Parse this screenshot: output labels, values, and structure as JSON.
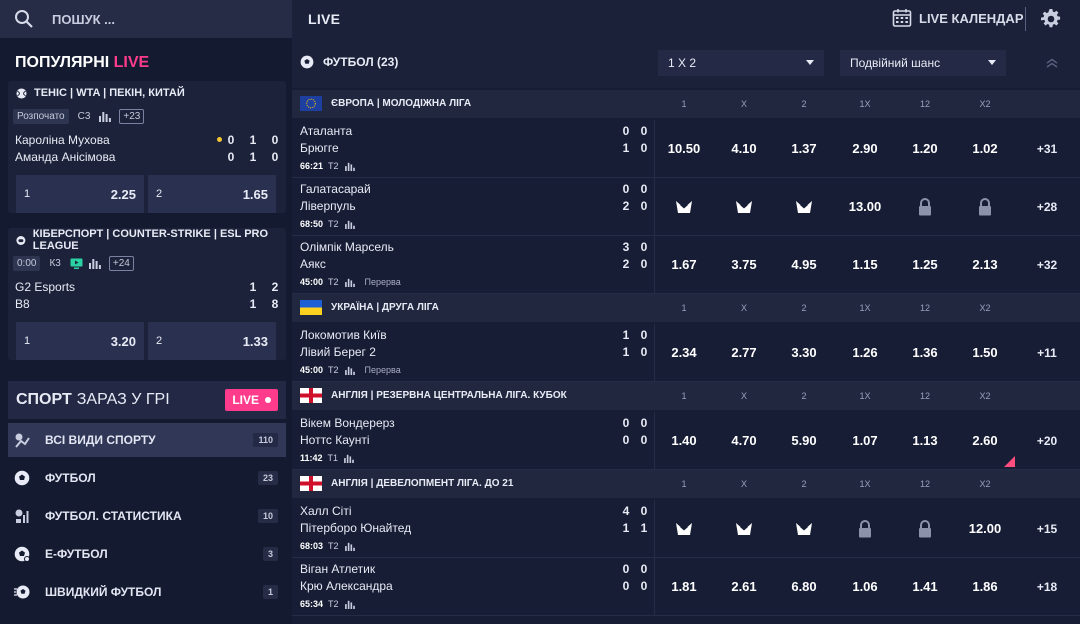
{
  "topbar": {
    "search_placeholder": "ПОШУК ...",
    "live_title": "LIVE",
    "calendar_label": "LIVE КАЛЕНДАР"
  },
  "popular": {
    "title_white": "ПОПУЛЯРНІ",
    "title_pink": "LIVE",
    "cards": [
      {
        "header": "ТЕНІС | WTA | ПЕКІН, КИТАЙ",
        "badges": [
          "Розпочато",
          "С3",
          "+23"
        ],
        "teams": [
          {
            "name": "Кароліна Мухова",
            "scores": [
              "0",
              "1",
              "0"
            ],
            "serving": true
          },
          {
            "name": "Аманда Анісімова",
            "scores": [
              "0",
              "1",
              "0"
            ],
            "serving": false
          }
        ],
        "odds": [
          {
            "label": "1",
            "value": "2.25"
          },
          {
            "label": "2",
            "value": "1.65"
          }
        ]
      },
      {
        "header": "КІБЕРСПОРТ | COUNTER-STRIKE | ESL PRO LEAGUE",
        "badges": [
          "0:00",
          "К3",
          "+24"
        ],
        "teams": [
          {
            "name": "G2 Esports",
            "scores": [
              "1",
              "2"
            ],
            "serving": false
          },
          {
            "name": "B8",
            "scores": [
              "1",
              "8"
            ],
            "serving": false
          }
        ],
        "odds": [
          {
            "label": "1",
            "value": "3.20"
          },
          {
            "label": "2",
            "value": "1.33"
          }
        ]
      }
    ]
  },
  "sport_now": {
    "title_bold": "СПОРТ",
    "title_rest": "ЗАРАЗ У ГРІ",
    "live_badge": "LIVE"
  },
  "sports": [
    {
      "label": "ВСІ ВИДИ СПОРТУ",
      "count": "110",
      "icon": "all-sports-icon"
    },
    {
      "label": "ФУТБОЛ",
      "count": "23",
      "icon": "soccer-ball-icon"
    },
    {
      "label": "ФУТБОЛ. СТАТИСТИКА",
      "count": "10",
      "icon": "stats-icon"
    },
    {
      "label": "Е-ФУТБОЛ",
      "count": "3",
      "icon": "esoccer-icon"
    },
    {
      "label": "ШВИДКИЙ ФУТБОЛ",
      "count": "1",
      "icon": "fast-soccer-icon"
    }
  ],
  "main": {
    "sport_title": "ФУТБОЛ (23)",
    "market_select": "1 X 2",
    "market_select2": "Подвійний шанс",
    "columns": [
      "1",
      "X",
      "2",
      "1X",
      "12",
      "X2"
    ],
    "leagues": [
      {
        "name": "ЄВРОПА | МОЛОДІЖНА ЛІГА",
        "flag": "eu",
        "matches": [
          {
            "team1": "Аталанта",
            "team2": "Брюгге",
            "score1": [
              "0",
              "0"
            ],
            "score2": [
              "1",
              "0"
            ],
            "time": "66:21",
            "period": "Т2",
            "state": "",
            "odds": [
              "10.50",
              "4.10",
              "1.37",
              "2.90",
              "1.20",
              "1.02"
            ],
            "more": "+31"
          },
          {
            "team1": "Галатасарай",
            "team2": "Ліверпуль",
            "score1": [
              "0",
              "0"
            ],
            "score2": [
              "2",
              "0"
            ],
            "time": "68:50",
            "period": "Т2",
            "state": "",
            "odds": [
              "suspended",
              "suspended",
              "suspended",
              "13.00",
              "locked",
              "locked"
            ],
            "more": "+28"
          },
          {
            "team1": "Олімпік Марсель",
            "team2": "Аякс",
            "score1": [
              "3",
              "0"
            ],
            "score2": [
              "2",
              "0"
            ],
            "time": "45:00",
            "period": "Т2",
            "state": "Перерва",
            "odds": [
              "1.67",
              "3.75",
              "4.95",
              "1.15",
              "1.25",
              "2.13"
            ],
            "more": "+32"
          }
        ]
      },
      {
        "name": "УКРАЇНА | ДРУГА ЛІГА",
        "flag": "ua",
        "matches": [
          {
            "team1": "Локомотив Київ",
            "team2": "Лівий Берег 2",
            "score1": [
              "1",
              "0"
            ],
            "score2": [
              "1",
              "0"
            ],
            "time": "45:00",
            "period": "Т2",
            "state": "Перерва",
            "odds": [
              "2.34",
              "2.77",
              "3.30",
              "1.26",
              "1.36",
              "1.50"
            ],
            "more": "+11"
          }
        ]
      },
      {
        "name": "АНГЛІЯ | РЕЗЕРВНА ЦЕНТРАЛЬНА ЛІГА. КУБОК",
        "flag": "en",
        "matches": [
          {
            "team1": "Вікем Вондерерз",
            "team2": "Ноттс Каунті",
            "score1": [
              "0",
              "0"
            ],
            "score2": [
              "0",
              "0"
            ],
            "time": "11:42",
            "period": "Т1",
            "state": "",
            "odds": [
              "1.40",
              "4.70",
              "5.90",
              "1.07",
              "1.13",
              "2.60"
            ],
            "more": "+20"
          }
        ]
      },
      {
        "name": "АНГЛІЯ | ДЕВЕЛОПМЕНТ ЛІГА. ДО 21",
        "flag": "en",
        "matches": [
          {
            "team1": "Халл Сіті",
            "team2": "Пітерборо Юнайтед",
            "score1": [
              "4",
              "0"
            ],
            "score2": [
              "1",
              "1"
            ],
            "time": "68:03",
            "period": "Т2",
            "state": "",
            "odds": [
              "suspended",
              "suspended",
              "suspended",
              "locked",
              "locked",
              "12.00"
            ],
            "more": "+15"
          },
          {
            "team1": "Віган Атлетик",
            "team2": "Крю Александра",
            "score1": [
              "0",
              "0"
            ],
            "score2": [
              "0",
              "0"
            ],
            "time": "65:34",
            "period": "Т2",
            "state": "",
            "odds": [
              "1.81",
              "2.61",
              "6.80",
              "1.06",
              "1.41",
              "1.86"
            ],
            "more": "+18"
          }
        ]
      }
    ]
  },
  "colors": {
    "accent_pink": "#ff3c8c",
    "bg": "#141a30",
    "panel": "#1c2239",
    "serve_dot": "#f6c632"
  }
}
